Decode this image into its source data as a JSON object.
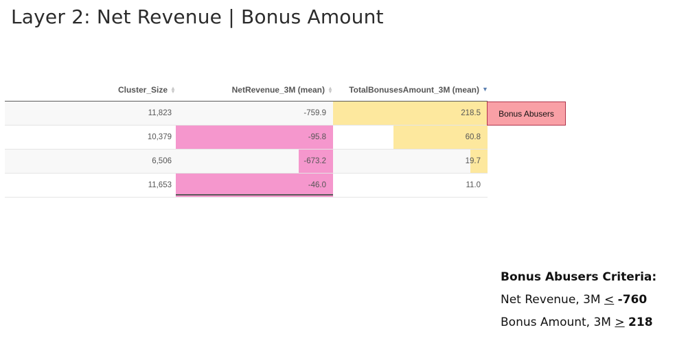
{
  "title": "Layer 2: Net Revenue | Bonus Amount",
  "table": {
    "headers": [
      "Cluster_Size",
      "NetRevenue_3M (mean)",
      "TotalBonusesAmount_3M (mean)"
    ],
    "sort_icons": [
      "sort-both-icon",
      "sort-both-icon",
      "sort-desc-icon"
    ],
    "rows": [
      {
        "cluster_size": "11,823",
        "net_revenue": "-759.9",
        "bonus_amount": "218.5"
      },
      {
        "cluster_size": "10,379",
        "net_revenue": "-95.8",
        "bonus_amount": "60.8"
      },
      {
        "cluster_size": "6,506",
        "net_revenue": "-673.2",
        "bonus_amount": "19.7"
      },
      {
        "cluster_size": "11,653",
        "net_revenue": "-46.0",
        "bonus_amount": "11.0"
      }
    ],
    "net_revenue_bar_fraction": [
      0.0,
      1.0,
      0.22,
      1.0
    ],
    "bonus_bar_fraction": [
      1.0,
      0.61,
      0.11,
      0.0
    ]
  },
  "badge": {
    "label": "Bonus Abusers",
    "color": "#f9a0a6"
  },
  "criteria": {
    "title": "Bonus Abusers Criteria:",
    "line1_prefix": "Net Revenue, 3M ",
    "line1_op": "<",
    "line1_value": "-760",
    "line2_prefix": "Bonus Amount, 3M ",
    "line2_op": ">",
    "line2_value": "218"
  },
  "colors": {
    "net_revenue_bar": "#f597cd",
    "bonus_bar": "#fde89e"
  }
}
